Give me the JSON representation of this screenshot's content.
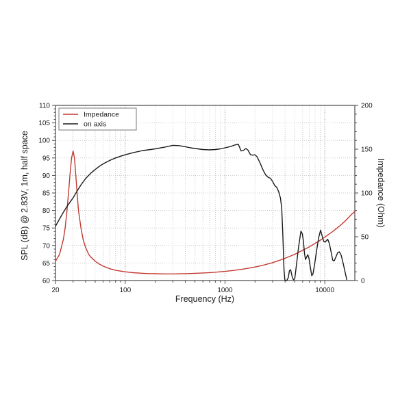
{
  "chart_data": {
    "type": "line",
    "title": "",
    "xlabel": "Frequency (Hz)",
    "ylabel_left": "SPL (dB) @ 2.83V, 1m, half space",
    "ylabel_right": "Impedance (Ohm)",
    "x_scale": "log",
    "x_range_hz": [
      20,
      20000
    ],
    "y_left_range_db": [
      60,
      110
    ],
    "y_right_range_ohm": [
      0,
      200
    ],
    "x_tick_values": [
      20,
      100,
      1000,
      10000
    ],
    "x_tick_labels": [
      "20",
      "100",
      "1000",
      "10000"
    ],
    "y_left_tick_values": [
      60,
      65,
      70,
      75,
      80,
      85,
      90,
      95,
      100,
      105,
      110
    ],
    "y_right_tick_values": [
      0,
      50,
      100,
      150,
      200
    ],
    "grid": {
      "horizontal_step_db": 5,
      "vertical": "log minor + decade major",
      "style": "dotted"
    },
    "legend": {
      "position": "top-left",
      "entries": [
        {
          "label": "Impedance"
        },
        {
          "label": "on axis"
        }
      ]
    },
    "colors": {
      "impedance_curve": "#c1392f",
      "on_axis_curve": "#1a1a1a",
      "frame": "#4a4a4a",
      "grid_minor": "#c9c9c9",
      "grid_major": "#9a9a9a",
      "text": "#1a1a1a"
    },
    "series": [
      {
        "name": "Impedance",
        "axis": "right",
        "unit": "Ohm",
        "color": "#c1392f",
        "points": [
          [
            20,
            22
          ],
          [
            22,
            30
          ],
          [
            24,
            47
          ],
          [
            25,
            60
          ],
          [
            26,
            78
          ],
          [
            27,
            100
          ],
          [
            28,
            122
          ],
          [
            29,
            140
          ],
          [
            30,
            148
          ],
          [
            31,
            140
          ],
          [
            32,
            120
          ],
          [
            33,
            98
          ],
          [
            34,
            80
          ],
          [
            36,
            60
          ],
          [
            38,
            46
          ],
          [
            40,
            38
          ],
          [
            43,
            30
          ],
          [
            45,
            27
          ],
          [
            50,
            22
          ],
          [
            55,
            18.8
          ],
          [
            60,
            16.5
          ],
          [
            70,
            13.5
          ],
          [
            80,
            11.8
          ],
          [
            90,
            10.8
          ],
          [
            100,
            10
          ],
          [
            120,
            9
          ],
          [
            150,
            8.3
          ],
          [
            180,
            7.9
          ],
          [
            200,
            7.8
          ],
          [
            250,
            7.6
          ],
          [
            300,
            7.6
          ],
          [
            350,
            7.7
          ],
          [
            400,
            7.9
          ],
          [
            500,
            8.3
          ],
          [
            600,
            8.7
          ],
          [
            700,
            9.1
          ],
          [
            800,
            9.5
          ],
          [
            1000,
            10.5
          ],
          [
            1200,
            11.5
          ],
          [
            1500,
            13
          ],
          [
            2000,
            15.5
          ],
          [
            2500,
            18
          ],
          [
            3000,
            20.5
          ],
          [
            3500,
            23
          ],
          [
            4000,
            25.5
          ],
          [
            5000,
            30
          ],
          [
            6000,
            34.5
          ],
          [
            7000,
            38.5
          ],
          [
            8000,
            42.5
          ],
          [
            9000,
            46
          ],
          [
            10000,
            49.5
          ],
          [
            12000,
            56
          ],
          [
            14000,
            62
          ],
          [
            16000,
            68
          ],
          [
            18000,
            74
          ],
          [
            20000,
            79
          ]
        ]
      },
      {
        "name": "on axis",
        "axis": "left",
        "unit": "dB",
        "color": "#1a1a1a",
        "points": [
          [
            20,
            75.5
          ],
          [
            22,
            77.6
          ],
          [
            24,
            79.5
          ],
          [
            26,
            81.1
          ],
          [
            28,
            82.4
          ],
          [
            30,
            83.6
          ],
          [
            33,
            85.6
          ],
          [
            36,
            87.3
          ],
          [
            40,
            89.1
          ],
          [
            45,
            90.6
          ],
          [
            50,
            91.7
          ],
          [
            55,
            92.6
          ],
          [
            60,
            93.3
          ],
          [
            70,
            94.3
          ],
          [
            80,
            95.0
          ],
          [
            90,
            95.5
          ],
          [
            100,
            95.9
          ],
          [
            120,
            96.5
          ],
          [
            150,
            97.1
          ],
          [
            180,
            97.4
          ],
          [
            200,
            97.6
          ],
          [
            250,
            98.1
          ],
          [
            300,
            98.6
          ],
          [
            350,
            98.5
          ],
          [
            400,
            98.2
          ],
          [
            450,
            97.9
          ],
          [
            500,
            97.7
          ],
          [
            600,
            97.4
          ],
          [
            700,
            97.3
          ],
          [
            800,
            97.4
          ],
          [
            900,
            97.6
          ],
          [
            1000,
            97.9
          ],
          [
            1150,
            98.3
          ],
          [
            1250,
            98.7
          ],
          [
            1360,
            98.9
          ],
          [
            1450,
            97.0
          ],
          [
            1520,
            97.1
          ],
          [
            1620,
            97.7
          ],
          [
            1700,
            97.2
          ],
          [
            1800,
            95.9
          ],
          [
            1900,
            95.8
          ],
          [
            2000,
            95.9
          ],
          [
            2100,
            95.3
          ],
          [
            2250,
            93.5
          ],
          [
            2400,
            91.6
          ],
          [
            2550,
            90.2
          ],
          [
            2700,
            89.5
          ],
          [
            2850,
            89.2
          ],
          [
            3000,
            88.3
          ],
          [
            3150,
            87.1
          ],
          [
            3300,
            86.6
          ],
          [
            3450,
            85.4
          ],
          [
            3600,
            83.5
          ],
          [
            3700,
            80.5
          ],
          [
            3800,
            73
          ],
          [
            3900,
            63
          ],
          [
            3980,
            60.1
          ],
          [
            4150,
            60
          ],
          [
            4300,
            60.8
          ],
          [
            4420,
            62.8
          ],
          [
            4550,
            63.1
          ],
          [
            4700,
            61.2
          ],
          [
            4850,
            60.2
          ],
          [
            5000,
            60.5
          ],
          [
            5200,
            64.5
          ],
          [
            5450,
            69.5
          ],
          [
            5760,
            74.1
          ],
          [
            5950,
            73.4
          ],
          [
            6100,
            71.3
          ],
          [
            6250,
            68
          ],
          [
            6400,
            66
          ],
          [
            6550,
            66.6
          ],
          [
            6750,
            67.4
          ],
          [
            6950,
            66.3
          ],
          [
            7150,
            64
          ],
          [
            7400,
            61.4
          ],
          [
            7600,
            61.8
          ],
          [
            7900,
            64.5
          ],
          [
            8300,
            68.8
          ],
          [
            8700,
            72.3
          ],
          [
            9080,
            74.4
          ],
          [
            9400,
            72.8
          ],
          [
            9750,
            71.2
          ],
          [
            10100,
            71
          ],
          [
            10400,
            71.4
          ],
          [
            10700,
            71.8
          ],
          [
            11100,
            70.6
          ],
          [
            11600,
            68
          ],
          [
            12000,
            65.8
          ],
          [
            12400,
            65.6
          ],
          [
            12900,
            66.7
          ],
          [
            13500,
            68
          ],
          [
            14000,
            68.2
          ],
          [
            14600,
            67.2
          ],
          [
            15300,
            64.8
          ],
          [
            16000,
            62.3
          ],
          [
            16600,
            60.3
          ]
        ]
      }
    ]
  }
}
